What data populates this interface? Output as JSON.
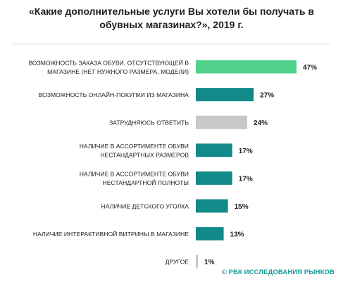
{
  "title": "«Какие дополнительные услуги Вы хотели бы получать в обувных магазинах?», 2019 г.",
  "source": "© РБК ИССЛЕДОВАНИЯ РЫНКОВ",
  "colors": {
    "highlight": "#4fd18b",
    "primary": "#138a8a",
    "neutral": "#c8c8c8",
    "text": "#1e1e1e",
    "source": "#159a9a"
  },
  "chart_data": {
    "type": "bar",
    "orientation": "horizontal",
    "title": "«Какие дополнительные услуги Вы хотели бы получать в обувных магазинах?», 2019 г.",
    "unit": "%",
    "categories": [
      [
        "ВОЗМОЖНОСТЬ ЗАКАЗА ОБУВИ, ОТСУТСТВУЮЩЕЙ В",
        "МАГАЗИНЕ (НЕТ НУЖНОГО РАЗМЕРА, МОДЕЛИ)"
      ],
      [
        "ВОЗМОЖНОСТЬ ОНЛАЙН-ПОКУПКИ ИЗ МАГАЗИНА"
      ],
      [
        "ЗАТРУДНЯЮСЬ ОТВЕТИТЬ"
      ],
      [
        "НАЛИЧИЕ В АССОРТИМЕНТЕ ОБУВИ",
        "НЕСТАНДАРТНЫХ РАЗМЕРОВ"
      ],
      [
        "НАЛИЧИЕ В АССОРТИМЕНТЕ ОБУВИ",
        "НЕСТАНДАРТНОЙ ПОЛНОТЫ"
      ],
      [
        "НАЛИЧИЕ ДЕТСКОГО УГОЛКА"
      ],
      [
        "НАЛИЧИЕ ИНТЕРАКТИВНОЙ ВИТРИНЫ В МАГАЗИНЕ"
      ],
      [
        "ДРУГОЕ"
      ]
    ],
    "values": [
      47,
      27,
      24,
      17,
      17,
      15,
      13,
      1
    ],
    "labels": [
      "47%",
      "27%",
      "24%",
      "17%",
      "17%",
      "15%",
      "13%",
      "1%"
    ],
    "bar_colors": [
      "#4fd18b",
      "#138a8a",
      "#c8c8c8",
      "#138a8a",
      "#138a8a",
      "#138a8a",
      "#138a8a",
      "#c8c8c8"
    ],
    "xlim": [
      0,
      47
    ],
    "grid": false,
    "legend": "none"
  }
}
